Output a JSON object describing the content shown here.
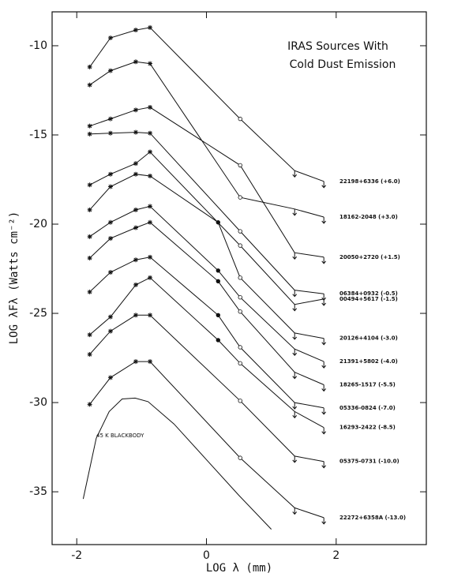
{
  "chart_data": {
    "type": "line",
    "title": [
      "IRAS Sources With",
      "Cold Dust Emission"
    ],
    "xlabel": "LOG λ (mm)",
    "ylabel": "LOG λFλ (Watts cm⁻²)",
    "xlim": [
      -2.38,
      3.39
    ],
    "ylim": [
      -37.96,
      -8.1
    ],
    "xticks": [
      -2,
      0,
      2
    ],
    "yticks": [
      -10,
      -15,
      -20,
      -25,
      -30,
      -35
    ],
    "color": "#111111",
    "series": [
      {
        "name": "22198+6336 (+6.0)",
        "markers": true,
        "x": [
          -1.8,
          -1.48,
          -1.09,
          -0.87,
          0.52,
          1.36,
          1.81
        ],
        "values": [
          -11.19,
          -9.56,
          -9.12,
          -8.98,
          -14.1,
          -17.0,
          -17.6
        ]
      },
      {
        "name": "18162-2048 (+3.0)",
        "markers": true,
        "x": [
          -1.8,
          -1.48,
          -1.09,
          -0.87,
          0.52,
          1.36,
          1.81
        ],
        "values": [
          -12.2,
          -11.4,
          -10.9,
          -11.0,
          -18.5,
          -19.15,
          -19.6
        ]
      },
      {
        "name": "20050+2720 (+1.5)",
        "markers": true,
        "x": [
          -1.8,
          -1.48,
          -1.09,
          -0.87,
          0.52,
          1.36,
          1.81
        ],
        "values": [
          -14.5,
          -14.1,
          -13.6,
          -13.45,
          -16.7,
          -21.6,
          -21.85
        ]
      },
      {
        "name": "06384+0932 (-0.5)",
        "markers": true,
        "x": [
          -1.8,
          -1.48,
          -1.09,
          -0.87,
          0.52,
          1.36,
          1.81
        ],
        "values": [
          -14.95,
          -14.9,
          -14.85,
          -14.9,
          -20.4,
          -23.7,
          -23.9
        ]
      },
      {
        "name": "00494+5617 (-1.5)",
        "markers": true,
        "x": [
          -1.8,
          -1.48,
          -1.09,
          -0.87,
          0.52,
          1.36,
          1.81
        ],
        "values": [
          -17.8,
          -17.2,
          -16.6,
          -15.95,
          -21.2,
          -24.5,
          -24.2
        ]
      },
      {
        "name": "20126+4104 (-3.0)",
        "markers": true,
        "x": [
          -1.8,
          -1.48,
          -1.09,
          -0.87,
          0.18,
          0.52,
          1.36,
          1.81
        ],
        "values": [
          -19.2,
          -17.9,
          -17.2,
          -17.3,
          -19.9,
          -23.0,
          -26.1,
          -26.4
        ]
      },
      {
        "name": "21391+5802 (-4.0)",
        "markers": true,
        "x": [
          -1.8,
          -1.48,
          -1.09,
          -0.87,
          0.18,
          0.52,
          1.36,
          1.81
        ],
        "values": [
          -20.7,
          -19.9,
          -19.2,
          -19.0,
          -22.6,
          -24.1,
          -27.0,
          -27.7
        ]
      },
      {
        "name": "18265-1517 (-5.5)",
        "markers": true,
        "x": [
          -1.8,
          -1.48,
          -1.09,
          -0.87,
          0.18,
          0.52,
          1.36,
          1.81
        ],
        "values": [
          -21.9,
          -20.8,
          -20.2,
          -19.9,
          -23.2,
          -24.9,
          -28.3,
          -29.0
        ]
      },
      {
        "name": "05336-0824 (-7.0)",
        "markers": true,
        "x": [
          -1.8,
          -1.48,
          -1.09,
          -0.87,
          0.18,
          0.52,
          1.36,
          1.81
        ],
        "values": [
          -23.8,
          -22.7,
          -22.0,
          -21.85,
          -25.1,
          -26.9,
          -30.0,
          -30.3
        ]
      },
      {
        "name": "16293-2422 (-8.5)",
        "markers": true,
        "x": [
          -1.8,
          -1.48,
          -1.09,
          -0.87,
          0.18,
          0.52,
          1.36,
          1.81
        ],
        "values": [
          -26.2,
          -25.2,
          -23.4,
          -23.0,
          -26.5,
          -27.8,
          -30.5,
          -31.4
        ]
      },
      {
        "name": "05375-0731 (-10.0)",
        "markers": true,
        "x": [
          -1.8,
          -1.48,
          -1.09,
          -0.87,
          0.52,
          1.36,
          1.81
        ],
        "values": [
          -27.3,
          -26.0,
          -25.1,
          -25.1,
          -29.9,
          -33.0,
          -33.3
        ]
      },
      {
        "name": "22272+6358A (-13.0)",
        "markers": true,
        "x": [
          -1.8,
          -1.48,
          -1.09,
          -0.87,
          0.52,
          1.36,
          1.81
        ],
        "values": [
          -30.1,
          -28.6,
          -27.7,
          -27.7,
          -33.1,
          -35.9,
          -36.45
        ]
      },
      {
        "name": "45 K BLACKBODY",
        "markers": false,
        "x": [
          -1.9,
          -1.7,
          -1.5,
          -1.3,
          -1.1,
          -0.9,
          -0.5,
          0,
          0.5,
          1.0
        ],
        "values": [
          -35.4,
          -32.0,
          -30.5,
          -29.8,
          -29.75,
          -29.95,
          -31.2,
          -33.2,
          -35.2,
          -37.1
        ]
      }
    ]
  }
}
